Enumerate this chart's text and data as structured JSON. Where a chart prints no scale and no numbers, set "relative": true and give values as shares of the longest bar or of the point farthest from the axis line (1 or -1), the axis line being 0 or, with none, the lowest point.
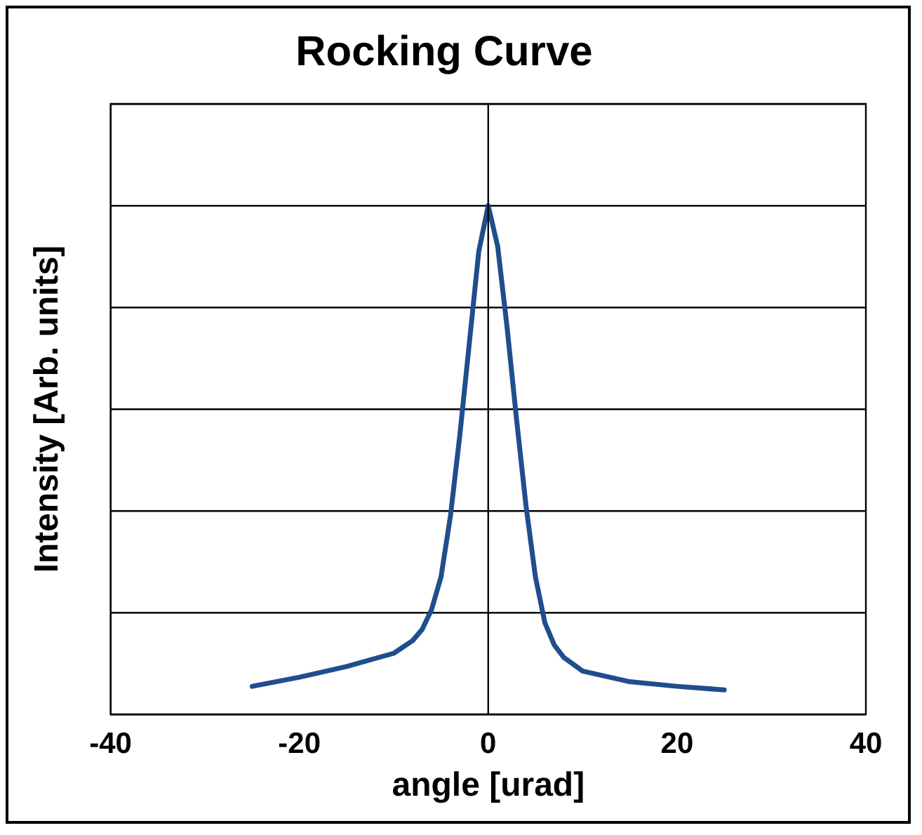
{
  "chart_data": {
    "type": "line",
    "title": "Rocking Curve",
    "xlabel": "angle [urad]",
    "ylabel": "Intensity [Arb. units]",
    "relative": true,
    "xlim": [
      -40,
      40
    ],
    "xticks": [
      -40,
      -20,
      0,
      20,
      40
    ],
    "grid": "y",
    "marker": "none",
    "line_style": "solid",
    "legend": false,
    "ref_lines": [
      {
        "axis": "x",
        "value": 0,
        "color": "#000000"
      }
    ],
    "series": [
      {
        "color": "#1f4e8c",
        "x": [
          -25,
          -20,
          -15,
          -10,
          -8,
          -7,
          -6,
          -5,
          -4,
          -3,
          -2,
          -1,
          0,
          1,
          2,
          3,
          4,
          5,
          6,
          7,
          8,
          10,
          15,
          20,
          25
        ],
        "values": [
          0.055,
          0.073,
          0.094,
          0.12,
          0.145,
          0.167,
          0.206,
          0.27,
          0.39,
          0.55,
          0.73,
          0.91,
          1,
          0.92,
          0.76,
          0.58,
          0.41,
          0.27,
          0.18,
          0.136,
          0.112,
          0.085,
          0.064,
          0.055,
          0.048
        ]
      }
    ]
  }
}
